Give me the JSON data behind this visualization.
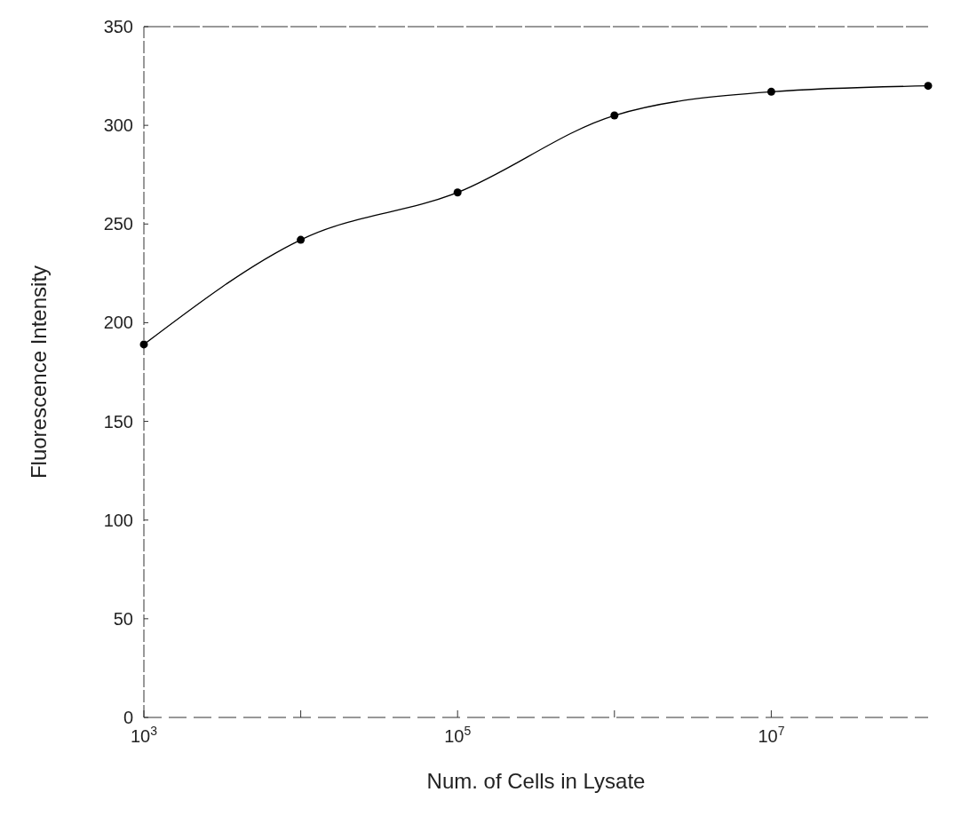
{
  "chart_data": {
    "type": "line",
    "xlabel": "Num. of Cells in Lysate",
    "ylabel": "Fluorescence Intensity",
    "x": [
      1000,
      10000,
      100000,
      1000000,
      10000000,
      100000000
    ],
    "series": [
      {
        "color": "#000000",
        "values": [
          189,
          242,
          266,
          305,
          317,
          320
        ]
      }
    ],
    "log": "x",
    "xlim": [
      1000,
      100000000
    ],
    "ylim": [
      0,
      350
    ],
    "xticks": [
      {
        "value": 1000,
        "label": "10$^{3}$"
      },
      {
        "value": 10000,
        "label": null
      },
      {
        "value": 100000,
        "label": "10$^{5}$"
      },
      {
        "value": 1000000,
        "label": null
      },
      {
        "value": 10000000,
        "label": "10$^{7}$"
      }
    ],
    "yticks": [
      0,
      50,
      100,
      150,
      200,
      250,
      300,
      350
    ],
    "marker": "circle",
    "line_style": "solid",
    "grid": false
  }
}
